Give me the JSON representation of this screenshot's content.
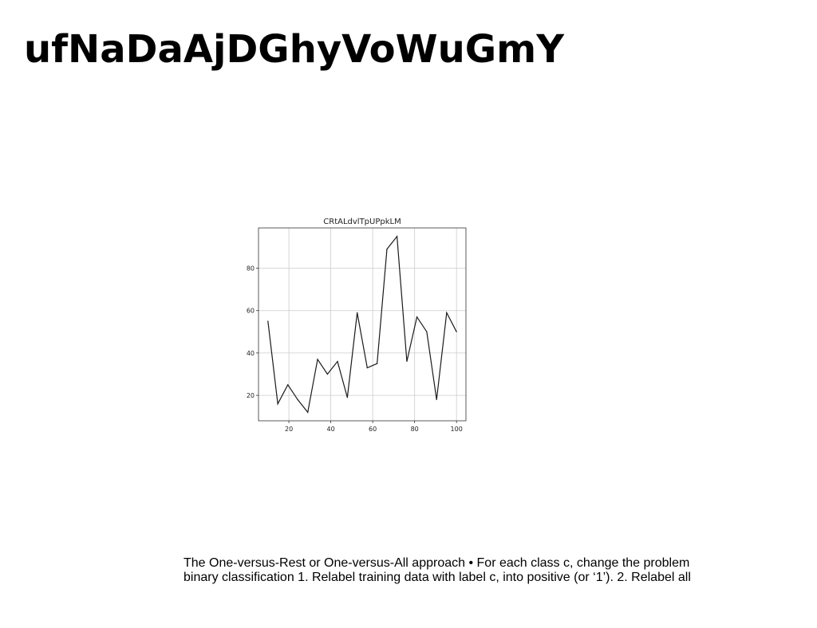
{
  "slide": {
    "title": "ufNaDaAjDGhyVoWuGmY",
    "body_lines": [
      "The One-versus-Rest or One-versus-All approach • For each class c, change the problem",
      "binary classification 1. Relabel training data with label c, into positive (or ‘1’). 2. Relabel all"
    ]
  },
  "chart_data": {
    "type": "line",
    "title": "CRtALdvlTpUPpkLM",
    "xlabel": "",
    "ylabel": "",
    "x": [
      10,
      14.7,
      19.5,
      24.2,
      29,
      33.7,
      38.4,
      43.2,
      47.9,
      52.6,
      57.4,
      62.1,
      66.8,
      71.6,
      76.3,
      81.1,
      85.8,
      90.5,
      95.3,
      100
    ],
    "series": [
      {
        "values": [
          55,
          16,
          25,
          18,
          12,
          37,
          30,
          36,
          19,
          59,
          33,
          35,
          89,
          95,
          36,
          57,
          50,
          18,
          59,
          50
        ]
      }
    ],
    "xlim": [
      5.5,
      104.5
    ],
    "ylim": [
      8,
      99
    ],
    "xticks": [
      20,
      40,
      60,
      80,
      100
    ],
    "yticks": [
      20,
      40,
      60,
      80
    ],
    "grid": true,
    "line_color": "#1a1a1a",
    "grid_color": "#cccccc"
  }
}
